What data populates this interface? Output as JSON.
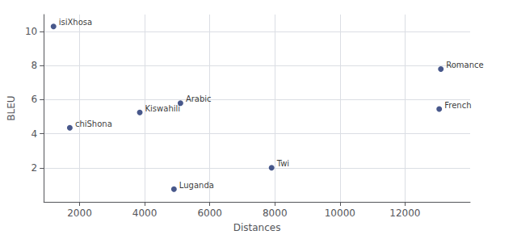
{
  "chart_data": {
    "type": "scatter",
    "labels": [
      "isiXhosa",
      "chiShona",
      "Kiswahili",
      "Arabic",
      "Luganda",
      "Twi",
      "Romance",
      "French"
    ],
    "x": [
      1200,
      1700,
      3850,
      5100,
      4900,
      7900,
      13100,
      13050
    ],
    "values": [
      10.3,
      4.35,
      5.25,
      5.8,
      0.75,
      2.0,
      7.8,
      5.45
    ],
    "xlabel": "Distances",
    "ylabel": "BLEU",
    "xlim": [
      900,
      14000
    ],
    "ylim": [
      0.0,
      11.0
    ],
    "xticks": [
      2000,
      4000,
      6000,
      8000,
      10000,
      12000
    ],
    "yticks": [
      2,
      4,
      6,
      8,
      10
    ],
    "color": "#1a2e6e",
    "grid": true
  }
}
